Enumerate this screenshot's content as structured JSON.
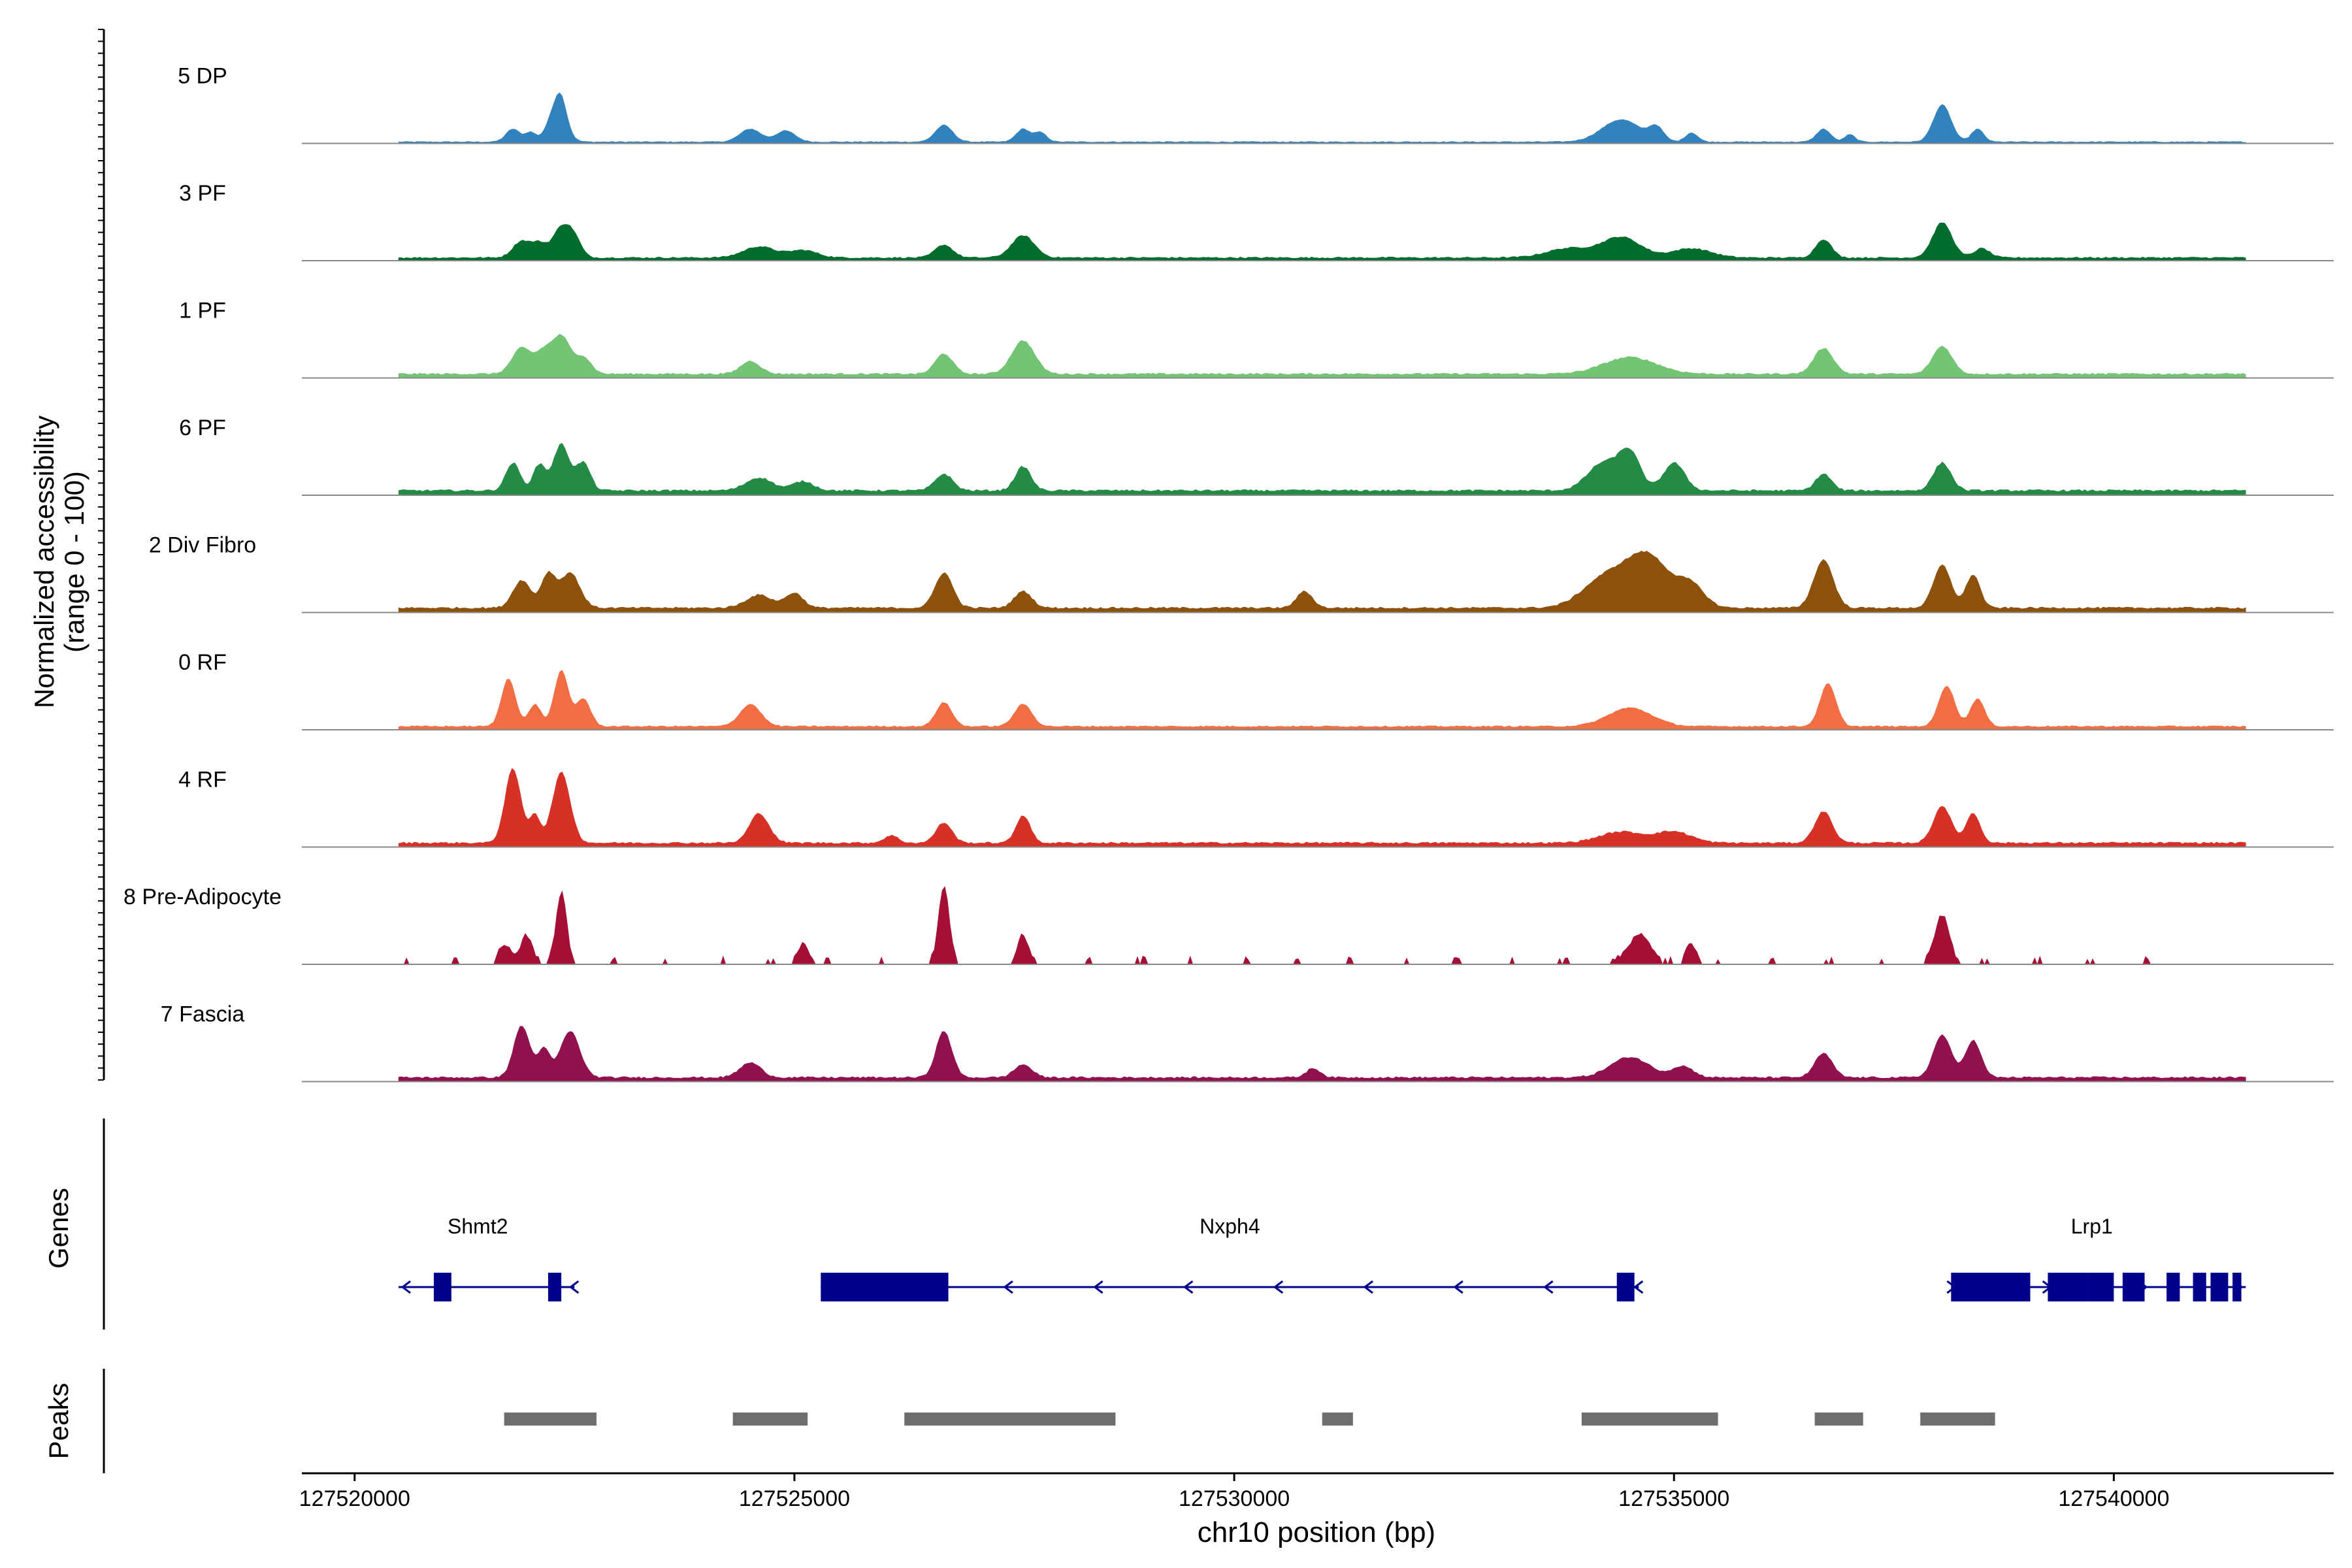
{
  "chart_data": {
    "type": "area",
    "title": "",
    "ylabel_line1": "Normalized accessibility",
    "ylabel_line2": "(range 0 - 100)",
    "xlabel": "chr10 position (bp)",
    "xlim": [
      127519400,
      127542500
    ],
    "ylim": [
      0,
      100
    ],
    "x_ticks": [
      127520000,
      127525000,
      127530000,
      127535000,
      127540000
    ],
    "x_tick_labels": [
      "127520000",
      "127525000",
      "127530000",
      "127535000",
      "127540000"
    ],
    "signal_range": [
      127520500,
      127541500
    ],
    "tracks": [
      {
        "name": "5 DP",
        "color": "#3182bd",
        "peaks": [
          [
            127521800,
            14,
            80
          ],
          [
            127522000,
            10,
            60
          ],
          [
            127522300,
            38,
            100
          ],
          [
            127522350,
            18,
            60
          ],
          [
            127524500,
            14,
            120
          ],
          [
            127524900,
            12,
            110
          ],
          [
            127526700,
            18,
            100
          ],
          [
            127527600,
            14,
            80
          ],
          [
            127527800,
            10,
            70
          ],
          [
            127534400,
            24,
            220
          ],
          [
            127534800,
            14,
            80
          ],
          [
            127535200,
            10,
            70
          ],
          [
            127536700,
            14,
            80
          ],
          [
            127537000,
            8,
            60
          ],
          [
            127538050,
            40,
            100
          ],
          [
            127538450,
            14,
            70
          ]
        ],
        "base": 1.2,
        "noise": 1.0
      },
      {
        "name": "3 PF",
        "color": "#006d2c",
        "peaks": [
          [
            127521900,
            18,
            100
          ],
          [
            127522100,
            14,
            80
          ],
          [
            127522350,
            32,
            100
          ],
          [
            127522500,
            18,
            80
          ],
          [
            127524600,
            12,
            180
          ],
          [
            127525100,
            8,
            160
          ],
          [
            127526700,
            14,
            100
          ],
          [
            127527600,
            24,
            130
          ],
          [
            127533800,
            10,
            250
          ],
          [
            127534400,
            22,
            220
          ],
          [
            127535200,
            10,
            220
          ],
          [
            127536700,
            20,
            90
          ],
          [
            127538050,
            38,
            110
          ],
          [
            127538500,
            10,
            90
          ]
        ],
        "base": 2.5,
        "noise": 1.6
      },
      {
        "name": "1 PF",
        "color": "#74c476",
        "peaks": [
          [
            127521900,
            28,
            110
          ],
          [
            127522150,
            22,
            90
          ],
          [
            127522350,
            40,
            100
          ],
          [
            127522600,
            18,
            90
          ],
          [
            127524500,
            14,
            110
          ],
          [
            127526700,
            22,
            100
          ],
          [
            127527600,
            36,
            130
          ],
          [
            127534500,
            18,
            300
          ],
          [
            127536700,
            28,
            110
          ],
          [
            127538050,
            30,
            110
          ]
        ],
        "base": 3.5,
        "noise": 1.8
      },
      {
        "name": "6 PF",
        "color": "#238b45",
        "peaks": [
          [
            127521800,
            30,
            80
          ],
          [
            127522100,
            28,
            70
          ],
          [
            127522350,
            50,
            90
          ],
          [
            127522600,
            30,
            80
          ],
          [
            127524600,
            14,
            150
          ],
          [
            127525100,
            10,
            120
          ],
          [
            127526700,
            18,
            100
          ],
          [
            127527600,
            26,
            90
          ],
          [
            127534200,
            30,
            180
          ],
          [
            127534500,
            38,
            120
          ],
          [
            127535000,
            30,
            120
          ],
          [
            127536700,
            18,
            90
          ],
          [
            127538050,
            30,
            100
          ]
        ],
        "base": 4.0,
        "noise": 2.2
      },
      {
        "name": "2 Div Fibro",
        "color": "#8c510a",
        "peaks": [
          [
            127521900,
            30,
            100
          ],
          [
            127522200,
            36,
            80
          ],
          [
            127522450,
            38,
            110
          ],
          [
            127524600,
            14,
            150
          ],
          [
            127525000,
            16,
            100
          ],
          [
            127526700,
            38,
            100
          ],
          [
            127527600,
            18,
            100
          ],
          [
            127530800,
            18,
            90
          ],
          [
            127534200,
            30,
            250
          ],
          [
            127534700,
            56,
            250
          ],
          [
            127535200,
            22,
            150
          ],
          [
            127536700,
            52,
            110
          ],
          [
            127538050,
            46,
            100
          ],
          [
            127538400,
            36,
            80
          ]
        ],
        "base": 4.0,
        "noise": 2.0
      },
      {
        "name": "0 RF",
        "color": "#f16d43",
        "peaks": [
          [
            127521750,
            52,
            80
          ],
          [
            127522050,
            24,
            70
          ],
          [
            127522350,
            60,
            80
          ],
          [
            127522600,
            30,
            80
          ],
          [
            127524500,
            24,
            120
          ],
          [
            127526700,
            26,
            90
          ],
          [
            127527600,
            24,
            100
          ],
          [
            127534500,
            20,
            250
          ],
          [
            127536750,
            46,
            90
          ],
          [
            127538100,
            44,
            90
          ],
          [
            127538450,
            30,
            80
          ]
        ],
        "base": 3.0,
        "noise": 1.4
      },
      {
        "name": "4 RF",
        "color": "#d73027",
        "peaks": [
          [
            127521800,
            80,
            90
          ],
          [
            127522050,
            30,
            60
          ],
          [
            127522350,
            76,
            100
          ],
          [
            127524600,
            32,
            110
          ],
          [
            127526100,
            8,
            80
          ],
          [
            127526700,
            22,
            90
          ],
          [
            127527600,
            30,
            80
          ],
          [
            127534400,
            12,
            250
          ],
          [
            127535000,
            12,
            200
          ],
          [
            127536700,
            34,
            100
          ],
          [
            127538050,
            40,
            100
          ],
          [
            127538400,
            32,
            80
          ]
        ],
        "base": 3.5,
        "noise": 2.0
      },
      {
        "name": "8 Pre-Adipocyte",
        "color": "#a50f36",
        "peaks": [
          [
            127521700,
            20,
            60
          ],
          [
            127521950,
            28,
            70
          ],
          [
            127522350,
            76,
            60
          ],
          [
            127525100,
            20,
            60
          ],
          [
            127526700,
            82,
            60
          ],
          [
            127527600,
            30,
            60
          ],
          [
            127534600,
            30,
            120
          ],
          [
            127535200,
            20,
            60
          ],
          [
            127538050,
            50,
            80
          ]
        ],
        "base": 0.0,
        "noise": 0.0,
        "sparse": true
      },
      {
        "name": "7 Fascia",
        "color": "#91114f",
        "peaks": [
          [
            127521900,
            56,
            90
          ],
          [
            127522150,
            30,
            70
          ],
          [
            127522450,
            50,
            110
          ],
          [
            127524500,
            16,
            120
          ],
          [
            127526700,
            50,
            90
          ],
          [
            127527600,
            14,
            100
          ],
          [
            127530900,
            10,
            80
          ],
          [
            127534500,
            22,
            220
          ],
          [
            127535100,
            12,
            120
          ],
          [
            127536700,
            26,
            100
          ],
          [
            127538050,
            46,
            100
          ],
          [
            127538400,
            40,
            90
          ]
        ],
        "base": 3.5,
        "noise": 2.0
      }
    ],
    "genes_label": "Genes",
    "gene_color": "#00008b",
    "genes": [
      {
        "name": "Shmt2",
        "start": 127520500,
        "end": 127522500,
        "strand": "-",
        "exons": [
          [
            127520900,
            127521100
          ],
          [
            127522200,
            127522350
          ]
        ],
        "label_x": 127521400
      },
      {
        "name": "Nxph4",
        "start": 127525300,
        "end": 127534600,
        "strand": "-",
        "exons": [
          [
            127525300,
            127526750
          ],
          [
            127534350,
            127534550
          ]
        ],
        "label_x": 127529950
      },
      {
        "name": "Lrp1",
        "start": 127538150,
        "end": 127541500,
        "strand": "+",
        "exons": [
          [
            127538150,
            127539050
          ],
          [
            127539250,
            127539700
          ],
          [
            127539700,
            127540000
          ],
          [
            127540100,
            127540350
          ],
          [
            127540600,
            127540750
          ],
          [
            127540900,
            127541050
          ],
          [
            127541100,
            127541300
          ],
          [
            127541350,
            127541450
          ]
        ],
        "label_x": 127539750
      }
    ],
    "peaks_label": "Peaks",
    "peak_color": "#6e6e6e",
    "peaks": [
      [
        127521700,
        127522750
      ],
      [
        127524300,
        127525150
      ],
      [
        127526250,
        127528650
      ],
      [
        127531000,
        127531350
      ],
      [
        127533950,
        127535500
      ],
      [
        127536600,
        127537150
      ],
      [
        127537800,
        127538650
      ]
    ]
  }
}
